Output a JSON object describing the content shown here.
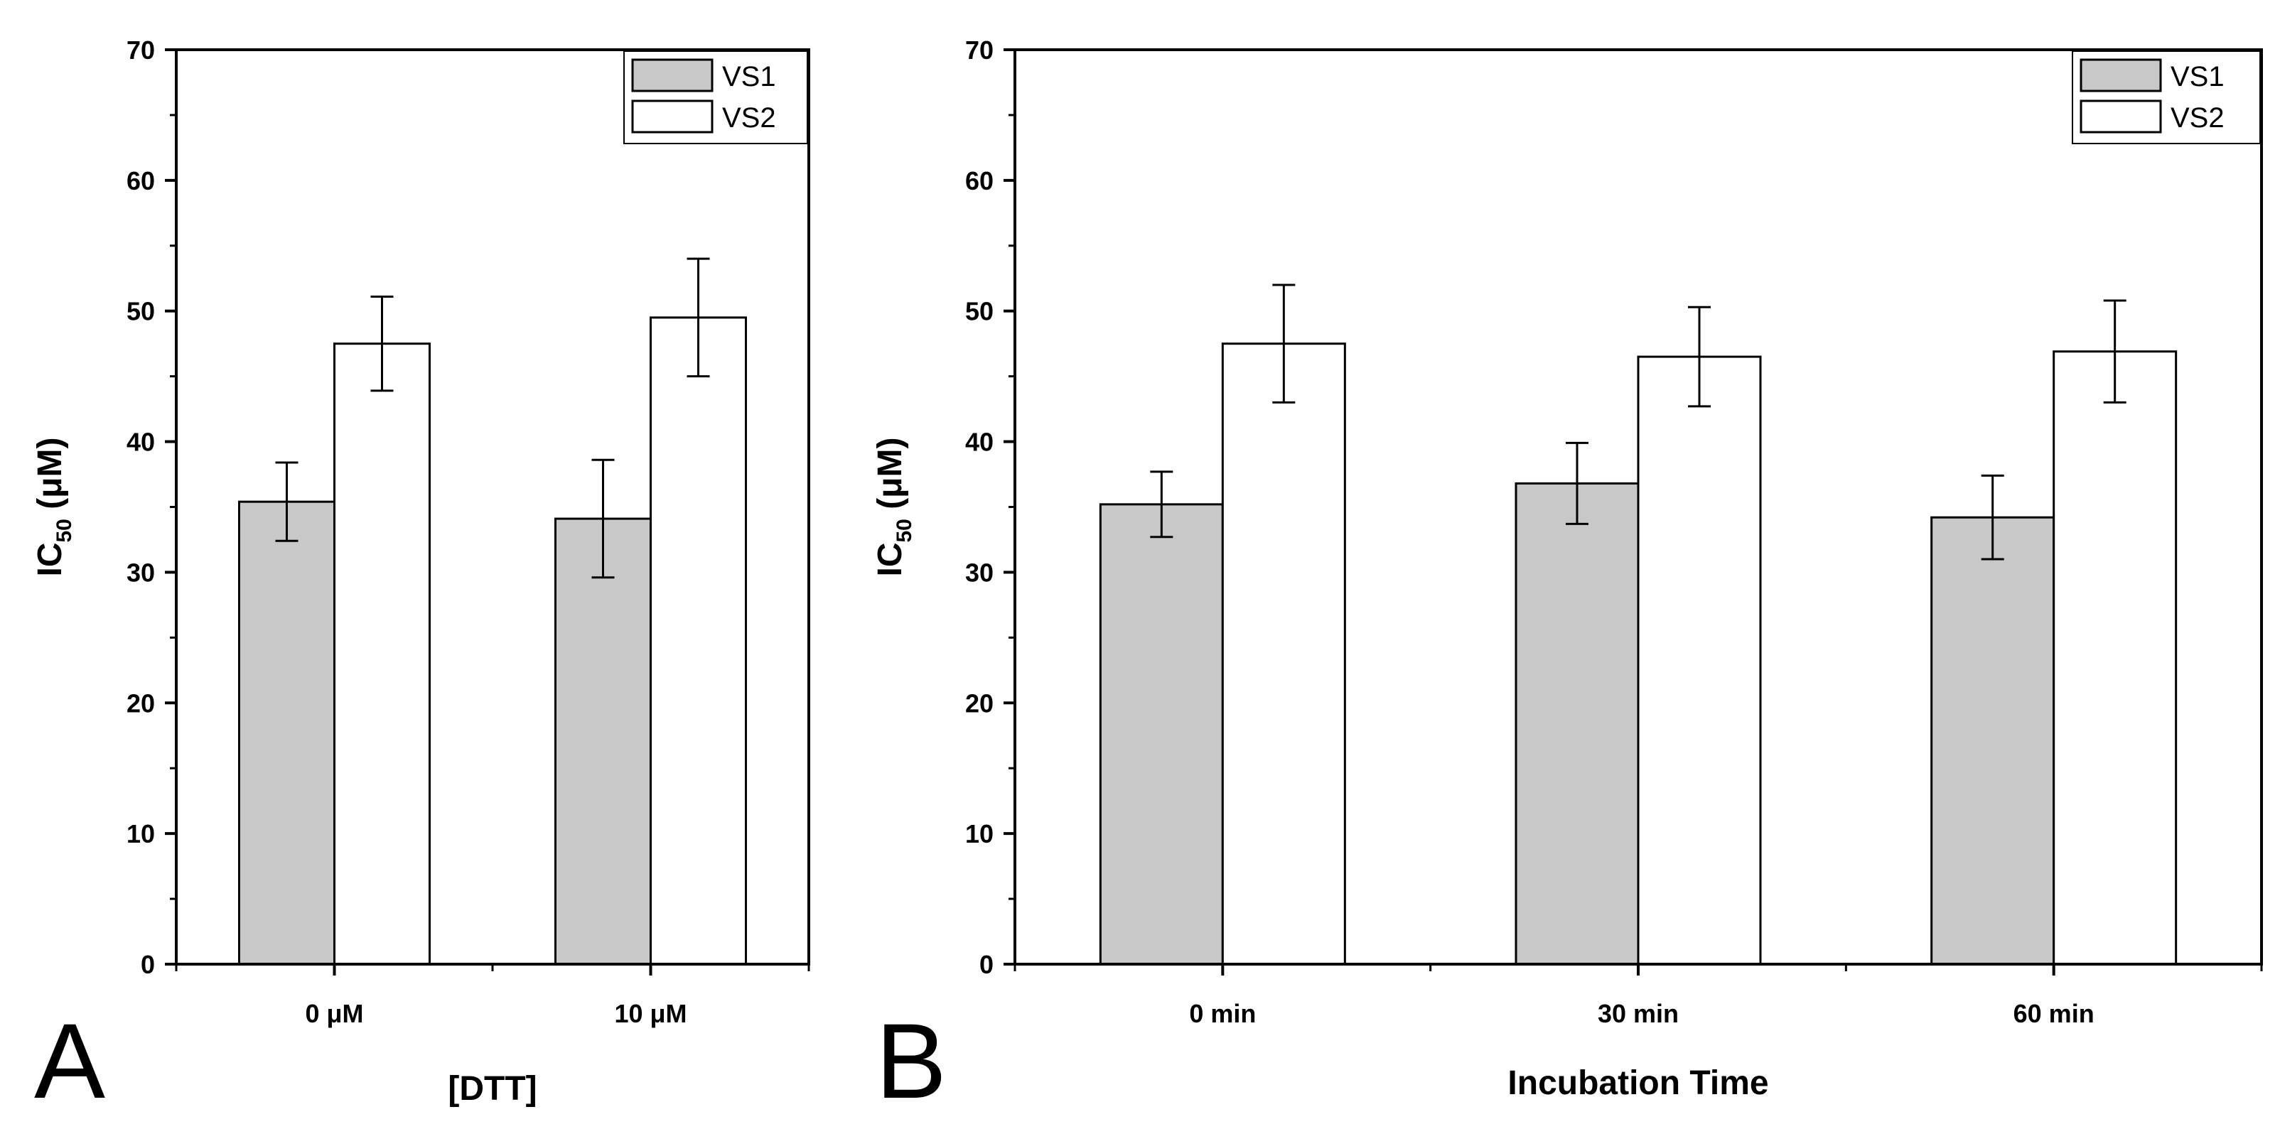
{
  "chart_data": [
    {
      "type": "bar",
      "panel_label": "A",
      "xlabel": "[DTT]",
      "ylabel": {
        "main": "IC",
        "sub": "50",
        "unit": " (μM)"
      },
      "ylim": [
        0,
        70
      ],
      "yticks": [
        0,
        10,
        20,
        30,
        40,
        50,
        60,
        70
      ],
      "categories": [
        "0 μM",
        "10 μM"
      ],
      "series": [
        {
          "name": "VS1",
          "color": "#c8c8c8",
          "values": [
            35.4,
            34.1
          ],
          "errors": [
            3.0,
            4.5
          ]
        },
        {
          "name": "VS2",
          "color": "#ffffff",
          "values": [
            47.5,
            49.5
          ],
          "errors": [
            3.6,
            4.5
          ]
        }
      ],
      "legend": "top-right",
      "grid": false
    },
    {
      "type": "bar",
      "panel_label": "B",
      "xlabel": "Incubation Time",
      "ylabel": {
        "main": "IC",
        "sub": "50",
        "unit": " (μM)"
      },
      "ylim": [
        0,
        70
      ],
      "yticks": [
        0,
        10,
        20,
        30,
        40,
        50,
        60,
        70
      ],
      "categories": [
        "0 min",
        "30 min",
        "60 min"
      ],
      "series": [
        {
          "name": "VS1",
          "color": "#c8c8c8",
          "values": [
            35.2,
            36.8,
            34.2
          ],
          "errors": [
            2.5,
            3.1,
            3.2
          ]
        },
        {
          "name": "VS2",
          "color": "#ffffff",
          "values": [
            47.5,
            46.5,
            46.9
          ],
          "errors": [
            4.5,
            3.8,
            3.9
          ]
        }
      ],
      "legend": "top-right",
      "grid": false
    }
  ]
}
